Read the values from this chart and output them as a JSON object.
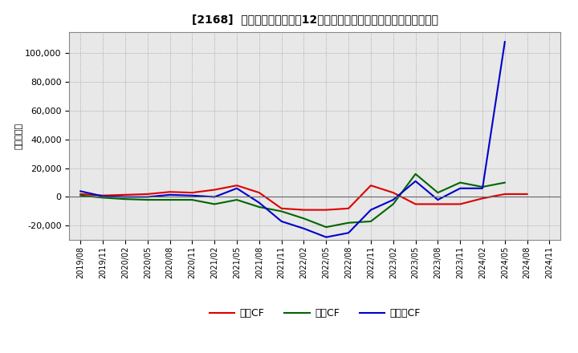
{
  "title": "[2168]  キャッシュフローの12か月移動合計の対前年同期増減額の推移",
  "ylabel": "（百万円）",
  "background_color": "#ffffff",
  "grid_color": "#999999",
  "plot_bg_color": "#e8e8e8",
  "x_labels": [
    "2019/08",
    "2019/11",
    "2020/02",
    "2020/05",
    "2020/08",
    "2020/11",
    "2021/02",
    "2021/05",
    "2021/08",
    "2021/11",
    "2022/02",
    "2022/05",
    "2022/08",
    "2022/11",
    "2023/02",
    "2023/05",
    "2023/08",
    "2023/11",
    "2024/02",
    "2024/05",
    "2024/08",
    "2024/11"
  ],
  "営業CF": [
    2000,
    1000,
    1500,
    2000,
    3500,
    3000,
    5000,
    8000,
    3000,
    -8000,
    -9000,
    -9000,
    -8000,
    8000,
    3000,
    -5000,
    -5000,
    -5000,
    -1000,
    2000,
    2000,
    null
  ],
  "投資CF": [
    1000,
    -500,
    -1500,
    -2000,
    -2000,
    -2000,
    -5000,
    -2000,
    -7000,
    -10000,
    -15000,
    -21000,
    -18000,
    -17000,
    -5000,
    16000,
    3000,
    10000,
    7000,
    10000,
    null,
    null
  ],
  "フリーCF": [
    4000,
    500,
    0,
    0,
    1500,
    1000,
    0,
    6000,
    -4000,
    -17000,
    -22000,
    -28000,
    -25000,
    -9000,
    -2000,
    11000,
    -2000,
    6000,
    6000,
    108000,
    null,
    null
  ],
  "ylim": [
    -30000,
    115000
  ],
  "yticks": [
    -20000,
    0,
    20000,
    40000,
    60000,
    80000,
    100000
  ],
  "line_colors": {
    "営業CF": "#dd0000",
    "投資CF": "#006600",
    "フリーCF": "#0000cc"
  },
  "line_width": 1.5,
  "legend_labels": {
    "営業CF": "営業CF",
    "投資CF": "投資CF",
    "フリーCF": "フリーCF"
  }
}
